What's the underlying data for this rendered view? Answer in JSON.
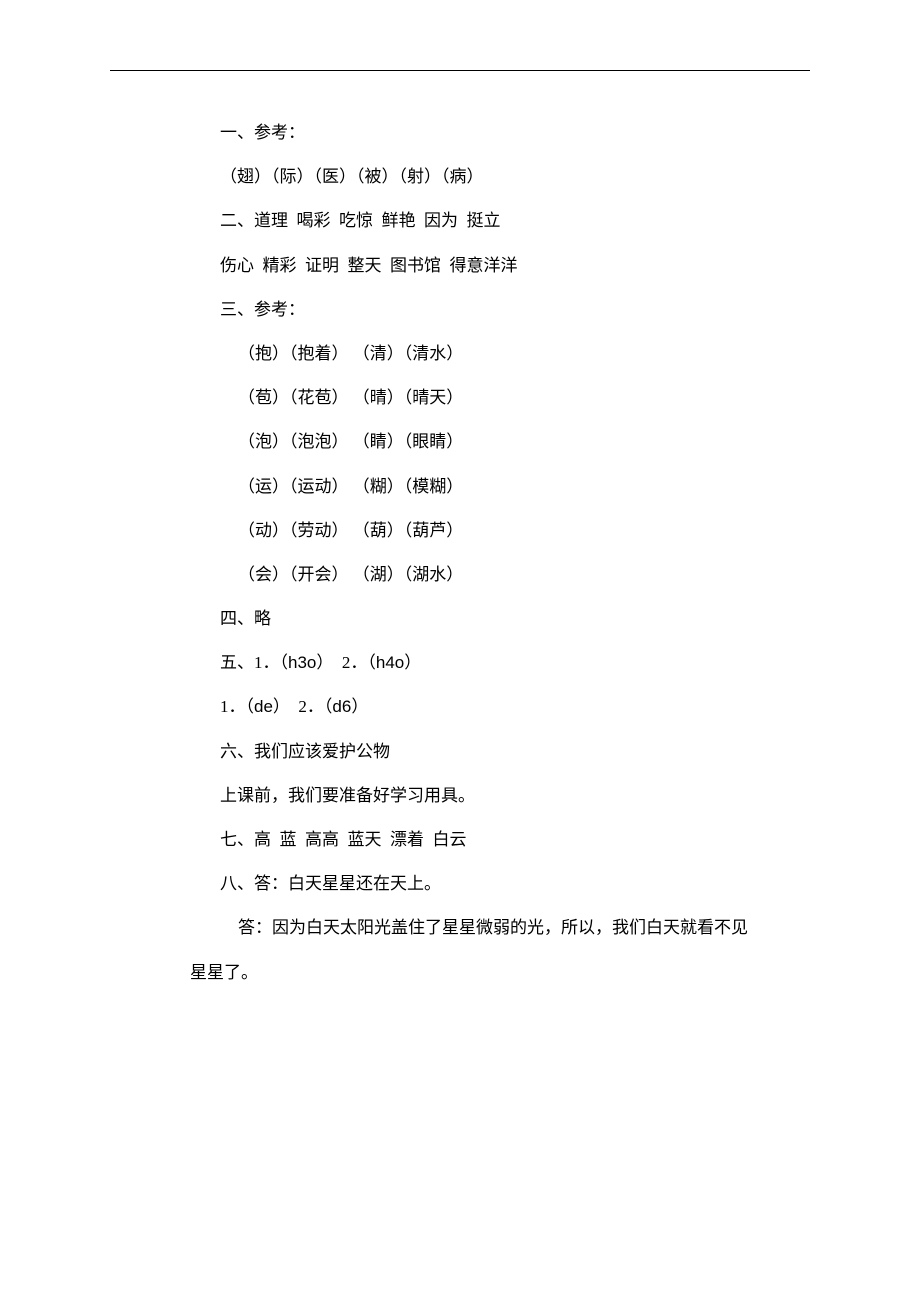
{
  "document": {
    "text_color": "#000000",
    "background_color": "#ffffff",
    "font_size_pt": 13,
    "line_height": 2.6,
    "lines": [
      {
        "text": "一、参考：",
        "indent": "indent1"
      },
      {
        "text": "（翅）（际）（医）（被）（射）（病）",
        "indent": "indent1"
      },
      {
        "text": "二、道理  喝彩  吃惊  鲜艳  因为  挺立",
        "indent": "indent1"
      },
      {
        "text": "伤心  精彩  证明  整天  图书馆  得意洋洋",
        "indent": "indent1"
      },
      {
        "text": "三、参考：",
        "indent": "indent1"
      },
      {
        "text": "（抱）（抱着） （清）（清水）",
        "indent": "indent2"
      },
      {
        "text": "（苞）（花苞） （晴）（晴天）",
        "indent": "indent2"
      },
      {
        "text": "（泡）（泡泡） （睛）（眼睛）",
        "indent": "indent2"
      },
      {
        "text": "（运）（运动） （糊）（模糊）",
        "indent": "indent2"
      },
      {
        "text": "（动）（劳动） （葫）（葫芦）",
        "indent": "indent2"
      },
      {
        "text": "（会）（开会） （湖）（湖水）",
        "indent": "indent2"
      },
      {
        "text": "四、略",
        "indent": "indent1"
      },
      {
        "text": "五、1．（h3o）  2．（h4o）",
        "indent": "indent1",
        "latin": [
          "h3o",
          "h4o"
        ]
      },
      {
        "text": "1．（de）  2．（d6）",
        "indent": "indent1",
        "latin": [
          "de",
          "d6"
        ]
      },
      {
        "text": "六、我们应该爱护公物",
        "indent": "indent1"
      },
      {
        "text": "上课前，我们要准备好学习用具。",
        "indent": "indent1"
      },
      {
        "text": "七、高  蓝  高高  蓝天  漂着  白云",
        "indent": "indent1"
      },
      {
        "text": "八、答：白天星星还在天上。",
        "indent": "indent1"
      },
      {
        "text": "答：因为白天太阳光盖住了星星微弱的光，所以，我们白天就看不见",
        "indent": "indent2"
      },
      {
        "text": "星星了。",
        "indent": "hang"
      }
    ]
  }
}
